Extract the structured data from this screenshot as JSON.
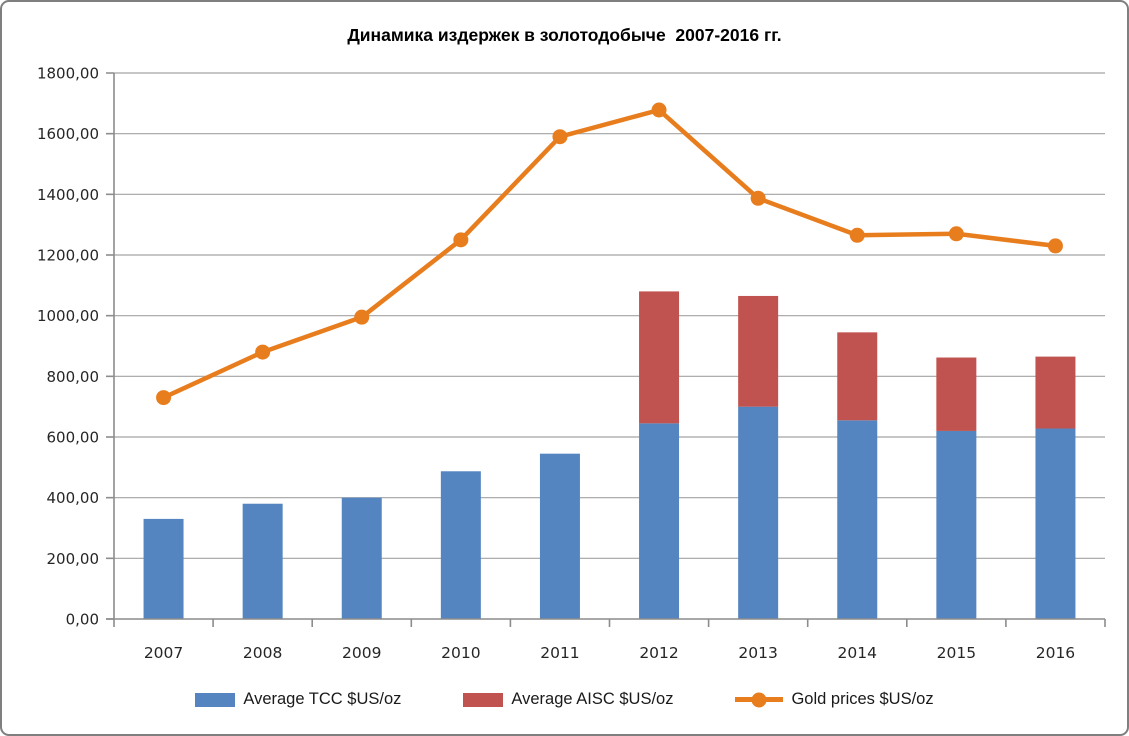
{
  "window": {
    "background": "#ffffff",
    "frame_border_color": "#7f7f7f"
  },
  "chart_data": {
    "type": "combo",
    "title": "Динамика издержек в золотодобыче  2007-2016 гг.",
    "categories": [
      "2007",
      "2008",
      "2009",
      "2010",
      "2011",
      "2012",
      "2013",
      "2014",
      "2015",
      "2016"
    ],
    "series": [
      {
        "name": "Average TCC $US/oz",
        "type": "bar",
        "color": "#5585C1",
        "values": [
          330,
          380,
          400,
          487,
          545,
          645,
          700,
          655,
          620,
          628
        ]
      },
      {
        "name": "Average AISC $US/oz",
        "type": "bar",
        "stacked_on": "Average TCC $US/oz",
        "color": "#C0534F",
        "values": [
          null,
          null,
          null,
          null,
          null,
          1080,
          1065,
          945,
          862,
          865
        ]
      },
      {
        "name": "Gold prices $US/oz",
        "type": "line",
        "color": "#E87D1E",
        "values": [
          730,
          880,
          995,
          1250,
          1590,
          1678,
          1387,
          1265,
          1270,
          1230
        ]
      }
    ],
    "ylim": [
      0,
      1800
    ],
    "y_tick_step": 200,
    "y_tick_labels": [
      "0,00",
      "200,00",
      "400,00",
      "600,00",
      "800,00",
      "1000,00",
      "1200,00",
      "1400,00",
      "1600,00",
      "1800,00"
    ],
    "grid": true,
    "legend_position": "bottom",
    "axis_color": "#8c8c8c",
    "gridline_color": "#a3a3a3",
    "label_color": "#262626"
  }
}
